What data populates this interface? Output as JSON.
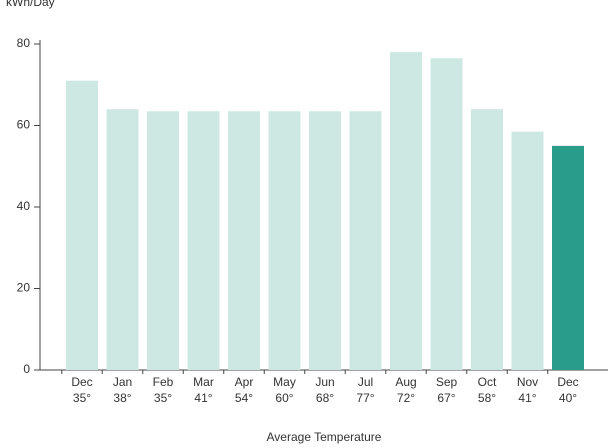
{
  "chart_data": {
    "type": "bar",
    "y_label": "kWh/Day",
    "x_label": "Average Temperature",
    "categories": [
      "Dec",
      "Jan",
      "Feb",
      "Mar",
      "Apr",
      "May",
      "Jun",
      "Jul",
      "Aug",
      "Sep",
      "Oct",
      "Nov",
      "Dec"
    ],
    "category_sublabels": [
      "35°",
      "38°",
      "35°",
      "41°",
      "54°",
      "60°",
      "68°",
      "77°",
      "72°",
      "67°",
      "58°",
      "41°",
      "40°"
    ],
    "values": [
      71,
      64,
      63.5,
      63.5,
      63.5,
      63.5,
      63.5,
      63.5,
      78,
      76.5,
      64,
      58.5,
      55
    ],
    "colors": [
      "#cde8e3",
      "#cde8e3",
      "#cde8e3",
      "#cde8e3",
      "#cde8e3",
      "#cde8e3",
      "#cde8e3",
      "#cde8e3",
      "#cde8e3",
      "#cde8e3",
      "#cde8e3",
      "#cde8e3",
      "#2a9c8b"
    ],
    "ylim": [
      0,
      80
    ],
    "yticks": [
      0,
      20,
      40,
      60,
      80
    ],
    "grid": false
  }
}
